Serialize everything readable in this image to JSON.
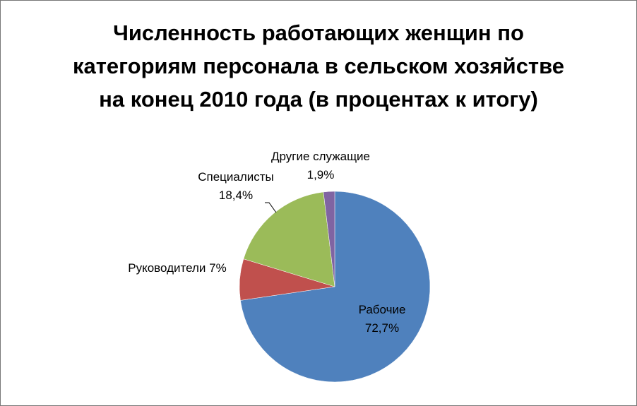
{
  "chart_data": {
    "type": "pie",
    "title": "Численность работающих женщин по категориям персонала в сельском хозяйстве на конец 2010 года (в процентах к итогу)",
    "categories": [
      "Рабочие",
      "Руководители",
      "Специалисты",
      "Другие служащие"
    ],
    "values": [
      72.7,
      7,
      18.4,
      1.9
    ],
    "value_labels": [
      "72,7%",
      "7%",
      "18,4%",
      "1,9%"
    ],
    "colors": [
      "#4f81bd",
      "#c0504d",
      "#9bbb59",
      "#8064a2"
    ]
  }
}
